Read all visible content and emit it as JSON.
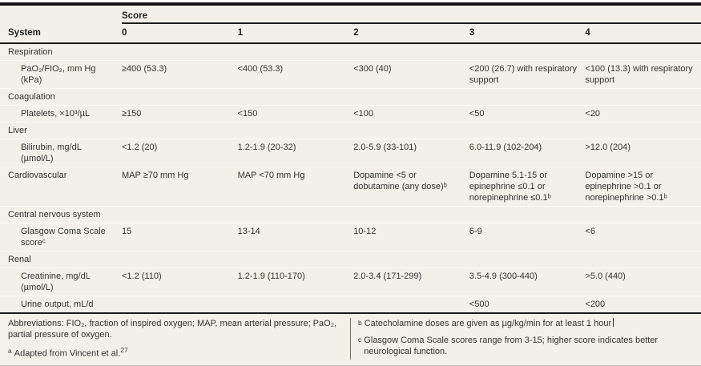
{
  "colors": {
    "table_background": "#f3f0e9",
    "rule_black": "#1a1a1a",
    "text": "#333333",
    "row_divider": "#fbfaf5",
    "footnote_divider": "#6e6e6e",
    "bottom_line": "#c9c5ba"
  },
  "header": {
    "score_label": "Score",
    "system_label": "System",
    "score_columns": [
      "0",
      "1",
      "2",
      "3",
      "4"
    ]
  },
  "table": {
    "rows": [
      {
        "kind": "section",
        "label": "Respiration",
        "cells": [
          "",
          "",
          "",
          "",
          ""
        ]
      },
      {
        "kind": "item",
        "label": "PaO₂/FIO₂, mm Hg (kPa)",
        "cells": [
          "≥400 (53.3)",
          "<400 (53.3)",
          "<300 (40)",
          "<200 (26.7) with respiratory support",
          "<100 (13.3) with respiratory support"
        ]
      },
      {
        "kind": "section",
        "label": "Coagulation",
        "cells": [
          "",
          "",
          "",
          "",
          ""
        ]
      },
      {
        "kind": "item",
        "label": "Platelets, ×10³/µL",
        "cells": [
          "≥150",
          "<150",
          "<100",
          "<50",
          "<20"
        ]
      },
      {
        "kind": "section",
        "label": "Liver",
        "cells": [
          "",
          "",
          "",
          "",
          ""
        ]
      },
      {
        "kind": "item",
        "label": "Bilirubin, mg/dL (µmol/L)",
        "cells": [
          "<1.2 (20)",
          "1.2-1.9 (20-32)",
          "2.0-5.9 (33-101)",
          "6.0-11.9 (102-204)",
          ">12.0 (204)"
        ]
      },
      {
        "kind": "section-values",
        "label": "Cardiovascular",
        "cells": [
          "MAP ≥70 mm Hg",
          "MAP <70 mm Hg",
          "Dopamine <5 or dobutamine (any dose)ᵇ",
          "Dopamine 5.1-15 or epinephrine ≤0.1 or norepinephrine ≤0.1ᵇ",
          "Dopamine >15 or epinephrine >0.1 or norepinephrine >0.1ᵇ"
        ]
      },
      {
        "kind": "section",
        "label": "Central nervous system",
        "cells": [
          "",
          "",
          "",
          "",
          ""
        ]
      },
      {
        "kind": "item",
        "label": "Glasgow Coma Scale scoreᶜ",
        "cells": [
          "15",
          "13-14",
          "10-12",
          "6-9",
          "<6"
        ]
      },
      {
        "kind": "section",
        "label": "Renal",
        "cells": [
          "",
          "",
          "",
          "",
          ""
        ]
      },
      {
        "kind": "item",
        "label": "Creatinine, mg/dL (µmol/L)",
        "cells": [
          "<1.2 (110)",
          "1.2-1.9 (110-170)",
          "2.0-3.4 (171-299)",
          "3.5-4.9 (300-440)",
          ">5.0 (440)"
        ]
      },
      {
        "kind": "item",
        "label": "Urine output, mL/d",
        "cells": [
          "",
          "",
          "",
          "<500",
          "<200"
        ]
      }
    ]
  },
  "footnotes": {
    "abbreviations": "Abbreviations: FIO₂, fraction of inspired oxygen; MAP, mean arterial pressure; PaO₂, partial pressure of oxygen.",
    "note_a": {
      "marker": "a",
      "text": "Adapted from Vincent et al.",
      "reference": "27"
    },
    "note_b": {
      "marker": "b",
      "text": "Catecholamine doses are given as µg/kg/min for at least 1 hour"
    },
    "note_c": {
      "marker": "c",
      "text": "Glasgow Coma Scale scores range from 3-15; higher score indicates better neurological function."
    }
  }
}
